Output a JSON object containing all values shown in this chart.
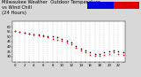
{
  "title": "Milwaukee Weather  Outdoor Temperature\nvs Wind Chill\n(24 Hours)",
  "title_fontsize": 3.8,
  "bg_color": "#d8d8d8",
  "plot_bg_color": "#ffffff",
  "legend_temp_color": "#0000dd",
  "legend_chill_color": "#dd0000",
  "temp_color": "#000000",
  "chill_color": "#ff0000",
  "grid_color": "#bbbbbb",
  "ylim": [
    25,
    65
  ],
  "yticks": [
    30,
    35,
    40,
    45,
    50,
    55,
    60
  ],
  "hours": [
    0,
    1,
    2,
    3,
    4,
    5,
    6,
    7,
    8,
    9,
    10,
    11,
    12,
    13,
    14,
    15,
    16,
    17,
    18,
    19,
    20,
    21,
    22,
    23
  ],
  "temp": [
    56,
    55,
    54,
    53,
    52,
    52,
    51,
    50,
    50,
    49,
    48,
    46,
    44,
    41,
    38,
    36,
    34,
    33,
    33,
    34,
    35,
    36,
    35,
    34
  ],
  "chill": [
    56,
    55,
    54,
    53,
    52,
    51,
    50,
    49,
    48,
    47,
    46,
    44,
    42,
    39,
    36,
    34,
    32,
    31,
    31,
    32,
    33,
    34,
    33,
    32
  ],
  "marker_size": 1.2,
  "tick_label_size": 2.8,
  "legend_fontsize": 3.2
}
